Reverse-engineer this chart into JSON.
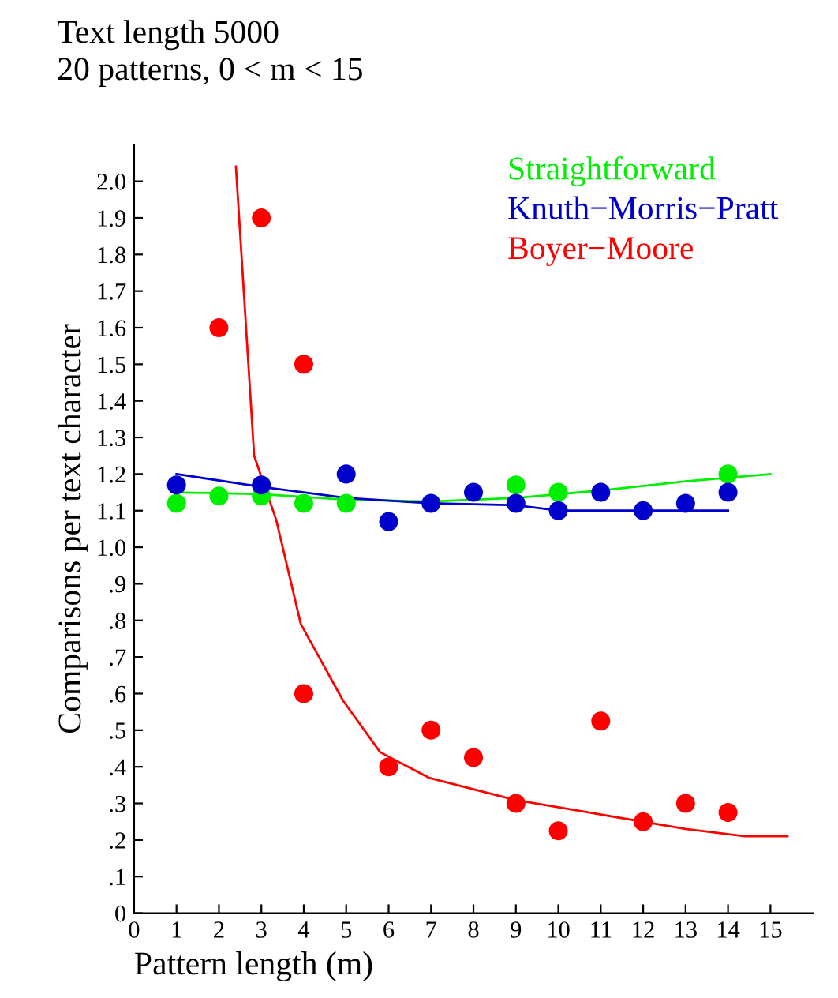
{
  "chart_data": {
    "type": "scatter",
    "title": "Text length 5000",
    "subtitle": "20 patterns, 0 < m < 15",
    "xlabel": "Pattern length (m)",
    "ylabel": "Comparisons per text character",
    "xlim": [
      0,
      16
    ],
    "ylim": [
      0,
      2.1
    ],
    "xticks": [
      0,
      1,
      2,
      3,
      4,
      5,
      6,
      7,
      8,
      9,
      10,
      11,
      12,
      13,
      14,
      15
    ],
    "yticks": [
      0,
      {
        "value": 0.1,
        "label": ".1"
      },
      {
        "value": 0.2,
        "label": ".2"
      },
      {
        "value": 0.3,
        "label": ".3"
      },
      {
        "value": 0.4,
        "label": ".4"
      },
      {
        "value": 0.5,
        "label": ".5"
      },
      {
        "value": 0.6,
        "label": ".6"
      },
      {
        "value": 0.7,
        "label": ".7"
      },
      {
        "value": 0.8,
        "label": ".8"
      },
      {
        "value": 0.9,
        "label": ".9"
      },
      {
        "value": 1.0,
        "label": "1.0"
      },
      1.1,
      1.2,
      1.3,
      1.4,
      1.5,
      1.6,
      1.7,
      1.8,
      1.9,
      {
        "value": 2.0,
        "label": "2.0"
      }
    ],
    "grid": false,
    "legend": "top right",
    "marker": "circle",
    "series": [
      {
        "name": "Straightforward",
        "color": "#00ee00",
        "x": [
          1,
          2,
          3,
          4,
          5,
          9,
          10,
          14
        ],
        "values": [
          1.12,
          1.14,
          1.14,
          1.12,
          1.12,
          1.17,
          1.15,
          1.2
        ]
      },
      {
        "name": "Knuth−Morris−Pratt",
        "color": "#0000cc",
        "x": [
          1,
          3,
          5,
          6,
          7,
          8,
          9,
          10,
          11,
          12,
          13,
          14
        ],
        "values": [
          1.17,
          1.17,
          1.2,
          1.07,
          1.12,
          1.15,
          1.12,
          1.1,
          1.15,
          1.1,
          1.12,
          1.15
        ]
      },
      {
        "name": "Boyer−Moore",
        "color": "#ff0000",
        "x": [
          2,
          3,
          4,
          4,
          6,
          7,
          8,
          9,
          10,
          11,
          12,
          13,
          14
        ],
        "values": [
          1.6,
          1.9,
          1.5,
          0.6,
          0.4,
          0.5,
          0.425,
          0.3,
          0.225,
          0.525,
          0.25,
          0.3,
          0.275
        ]
      },
      {
        "type": "line",
        "marker": "none",
        "color": "#00ee00",
        "x": [
          1,
          3,
          5,
          7,
          9,
          11,
          13,
          15
        ],
        "values": [
          1.15,
          1.145,
          1.13,
          1.125,
          1.135,
          1.155,
          1.18,
          1.2
        ]
      },
      {
        "type": "line",
        "marker": "none",
        "color": "#0000cc",
        "x": [
          1,
          3,
          5,
          7,
          9,
          10,
          12,
          14
        ],
        "values": [
          1.2,
          1.165,
          1.135,
          1.12,
          1.115,
          1.1,
          1.1,
          1.1
        ]
      },
      {
        "type": "line",
        "marker": "none",
        "color": "#ff0000",
        "x": [
          2.4,
          2.83,
          3.35,
          3.93,
          4.93,
          5.8,
          6.95,
          8.96,
          10.98,
          13,
          14.4,
          15.4
        ],
        "values": [
          2.04,
          1.25,
          1.075,
          0.79,
          0.58,
          0.44,
          0.37,
          0.31,
          0.27,
          0.23,
          0.21,
          0.21
        ]
      }
    ]
  }
}
